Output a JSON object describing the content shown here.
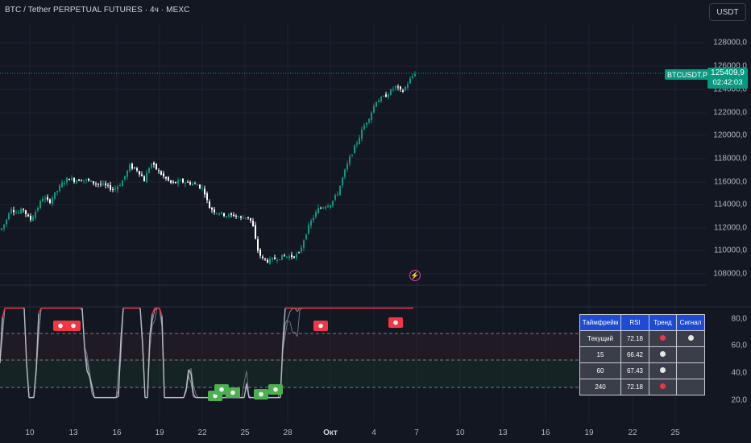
{
  "header": {
    "title": "BTC / Tether PERPETUAL FUTURES · 4ч · MEXC",
    "currency_button": "USDT"
  },
  "price_axis": {
    "ticks": [
      "128000,0",
      "126000,0",
      "124000,0",
      "122000,0",
      "120000,0",
      "118000,0",
      "116000,0",
      "114000,0",
      "112000,0",
      "110000,0",
      "108000,0"
    ]
  },
  "last_price": {
    "symbol": "BTCUSDT.P",
    "price": "125409,9",
    "countdown": "02:42:03",
    "color": "#089981"
  },
  "oscillator_axis": {
    "ticks": [
      "80,0",
      "60,0",
      "40,0",
      "20,0"
    ]
  },
  "date_axis": {
    "ticks": [
      "10",
      "13",
      "16",
      "19",
      "22",
      "25",
      "28",
      "Окт",
      "4",
      "7",
      "10",
      "13",
      "16",
      "19",
      "22",
      "25"
    ]
  },
  "signal_table": {
    "headers": [
      "Таймфрейм",
      "RSI",
      "Тренд",
      "Сигнал"
    ],
    "rows": [
      {
        "tf": "Текущий",
        "rsi": "72.18",
        "trend": "red-dot",
        "signal": "white-dot"
      },
      {
        "tf": "15",
        "rsi": "66.42",
        "trend": "white-dot",
        "signal": ""
      },
      {
        "tf": "60",
        "rsi": "67.43",
        "trend": "white-dot",
        "signal": ""
      },
      {
        "tf": "240",
        "rsi": "72.18",
        "trend": "red-dot",
        "signal": ""
      }
    ]
  },
  "colors": {
    "up": "#089981",
    "down": "#ffffff",
    "rsi_hot": "#f23645",
    "sell_marker": "#f23645",
    "buy_marker": "#4caf50",
    "table_header": "#1e4bd2"
  }
}
